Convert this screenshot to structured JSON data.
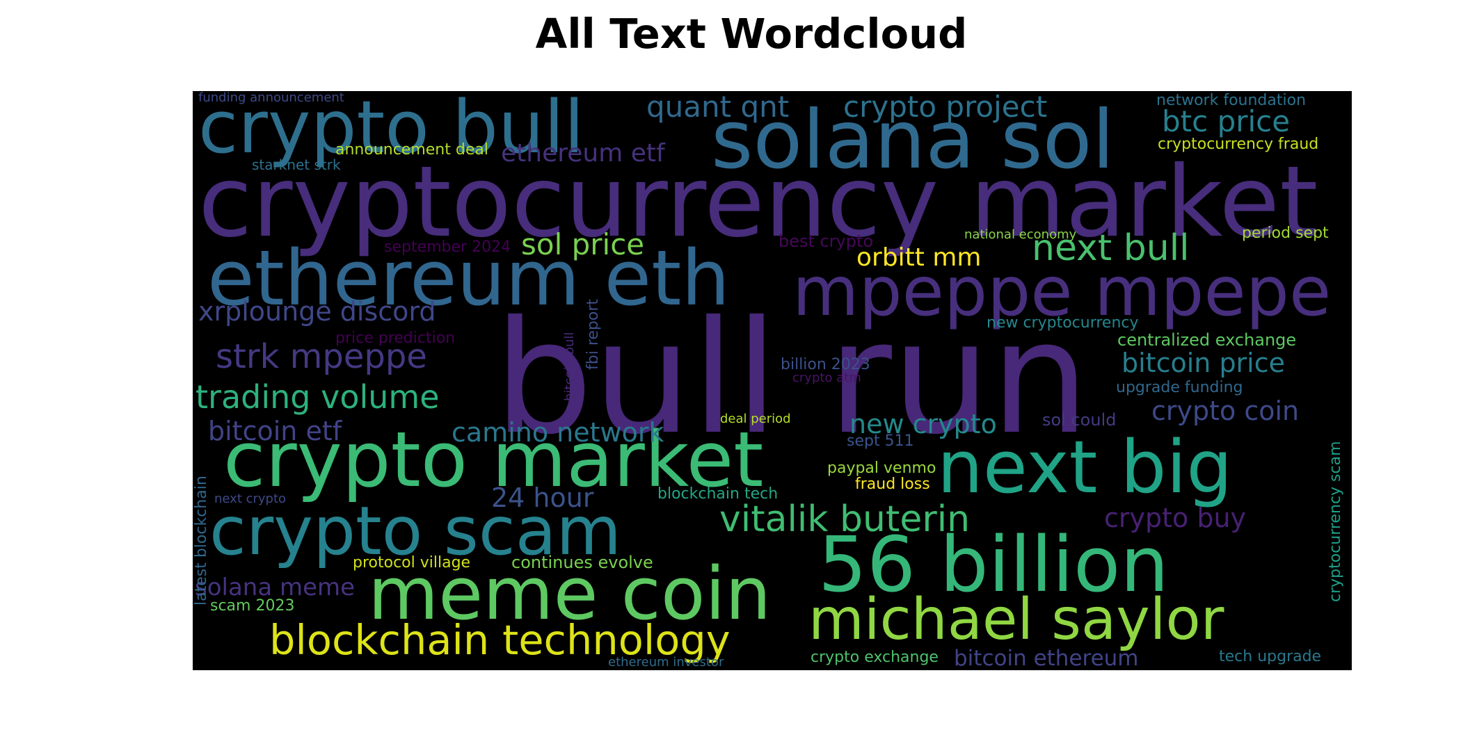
{
  "title": "All Text Wordcloud",
  "chart_data": {
    "type": "wordcloud",
    "title": "All Text Wordcloud",
    "background": "#000000",
    "words": [
      {
        "text": "cryptocurrency market",
        "color": "#472d7b"
      },
      {
        "text": "bull run",
        "color": "#482878"
      },
      {
        "text": "solana sol",
        "color": "#30698e"
      },
      {
        "text": "crypto bull",
        "color": "#2e6f8e"
      },
      {
        "text": "ethereum eth",
        "color": "#31668e"
      },
      {
        "text": "mpeppe mpepe",
        "color": "#472f7d"
      },
      {
        "text": "crypto market",
        "color": "#3bbb75"
      },
      {
        "text": "next big",
        "color": "#20a386"
      },
      {
        "text": "crypto scam",
        "color": "#26828e"
      },
      {
        "text": "56 billion",
        "color": "#35b779"
      },
      {
        "text": "meme coin",
        "color": "#5ec962"
      },
      {
        "text": "michael saylor",
        "color": "#90d743"
      },
      {
        "text": "blockchain technology",
        "color": "#dde318"
      },
      {
        "text": "vitalik buterin",
        "color": "#40bd72"
      },
      {
        "text": "quant qnt",
        "color": "#31688e"
      },
      {
        "text": "crypto project",
        "color": "#2c728e"
      },
      {
        "text": "btc price",
        "color": "#27808e"
      },
      {
        "text": "ethereum etf",
        "color": "#46327e"
      },
      {
        "text": "sol price",
        "color": "#7ad151"
      },
      {
        "text": "orbitt mm",
        "color": "#fde725"
      },
      {
        "text": "next bull",
        "color": "#4ac16d"
      },
      {
        "text": "xrplounge discord",
        "color": "#3f4788"
      },
      {
        "text": "strk mpeppe",
        "color": "#443983"
      },
      {
        "text": "trading volume",
        "color": "#2db27d"
      },
      {
        "text": "bitcoin price",
        "color": "#277f8e"
      },
      {
        "text": "centralized exchange",
        "color": "#5ec962"
      },
      {
        "text": "bitcoin etf",
        "color": "#414487"
      },
      {
        "text": "camino network",
        "color": "#2a788e"
      },
      {
        "text": "new crypto",
        "color": "#238a8d"
      },
      {
        "text": "crypto coin",
        "color": "#3e4989"
      },
      {
        "text": "24 hour",
        "color": "#3b528b"
      },
      {
        "text": "crypto buy",
        "color": "#482173"
      },
      {
        "text": "solana meme",
        "color": "#46337f"
      },
      {
        "text": "bitcoin ethereum",
        "color": "#414487"
      },
      {
        "text": "network foundation",
        "color": "#2c728e"
      },
      {
        "text": "cryptocurrency fraud",
        "color": "#c8e020"
      },
      {
        "text": "announcement deal",
        "color": "#b5de2b"
      },
      {
        "text": "funding announcement",
        "color": "#3e4a89"
      },
      {
        "text": "starknet strk",
        "color": "#2c728e"
      },
      {
        "text": "september 2024",
        "color": "#440154"
      },
      {
        "text": "best crypto",
        "color": "#46085c"
      },
      {
        "text": "national economy",
        "color": "#8bd646"
      },
      {
        "text": "period sept",
        "color": "#a2da37"
      },
      {
        "text": "new cryptocurrency",
        "color": "#24878e"
      },
      {
        "text": "price prediction",
        "color": "#440154"
      },
      {
        "text": "billion 2023",
        "color": "#3b528b"
      },
      {
        "text": "crypto atm",
        "color": "#481467"
      },
      {
        "text": "upgrade funding",
        "color": "#31688e"
      },
      {
        "text": "sol could",
        "color": "#443b84"
      },
      {
        "text": "deal period",
        "color": "#b5de2b"
      },
      {
        "text": "sept 511",
        "color": "#39558c"
      },
      {
        "text": "paypal venmo",
        "color": "#9bd93c"
      },
      {
        "text": "fraud loss",
        "color": "#fde725"
      },
      {
        "text": "blockchain tech",
        "color": "#22a884"
      },
      {
        "text": "next crypto",
        "color": "#3e4a89"
      },
      {
        "text": "protocol village",
        "color": "#d0e11c"
      },
      {
        "text": "continues evolve",
        "color": "#7ad151"
      },
      {
        "text": "scam 2023",
        "color": "#65cb5e"
      },
      {
        "text": "crypto exchange",
        "color": "#4ec36b"
      },
      {
        "text": "tech upgrade",
        "color": "#2a788e"
      },
      {
        "text": "ethereum investor",
        "color": "#2f6c8e"
      },
      {
        "text": "latest blockchain",
        "color": "#31688e"
      },
      {
        "text": "bitcoin bull",
        "color": "#472a7a"
      },
      {
        "text": "fbi report",
        "color": "#3c4f8a"
      },
      {
        "text": "cryptocurrency scam",
        "color": "#1fa088"
      }
    ]
  }
}
